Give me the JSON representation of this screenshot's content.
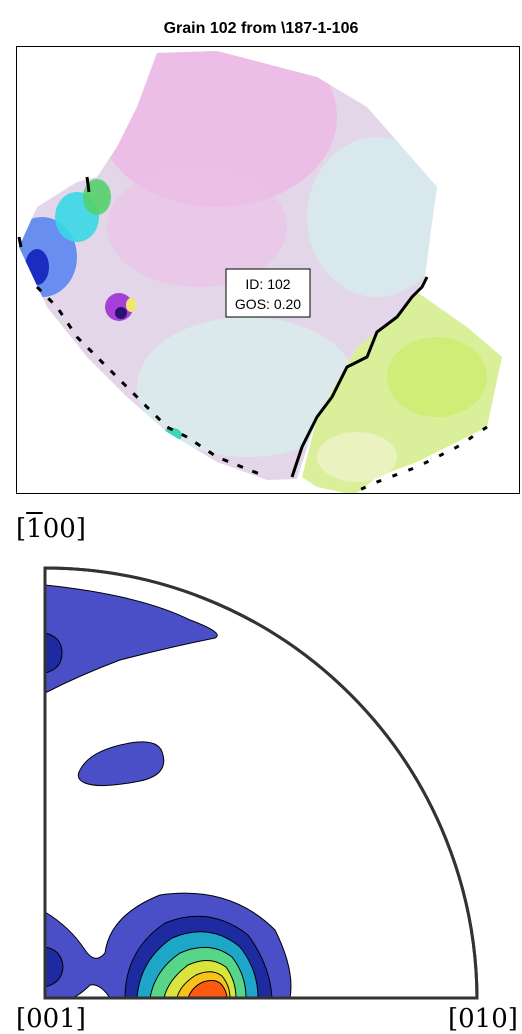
{
  "map": {
    "title": "Grain 102 from \\187-1-106",
    "annotation": {
      "id_line": "ID: 102",
      "gos_line": "GOS: 0.20"
    },
    "colors": {
      "main_grain": "#e3d6e9",
      "pink_region": "#eeb6e6",
      "cyan_tint": "#d4ecee",
      "neighbor_grain": "#d9ef9a",
      "boundary": "#000000"
    }
  },
  "chart_data": {
    "type": "contour",
    "subtype": "inverse pole figure",
    "poles": {
      "top_bracket_open": "[",
      "top_digit_bar": "1",
      "top_rest": "00]",
      "bottom_left": "[001]",
      "bottom_right": "[010]"
    },
    "contour_levels": 7,
    "colors": [
      "#4a4fc8",
      "#1d2aa0",
      "#1ea6c8",
      "#57d68a",
      "#d7e53c",
      "#f7c21b",
      "#fb5a10"
    ]
  }
}
